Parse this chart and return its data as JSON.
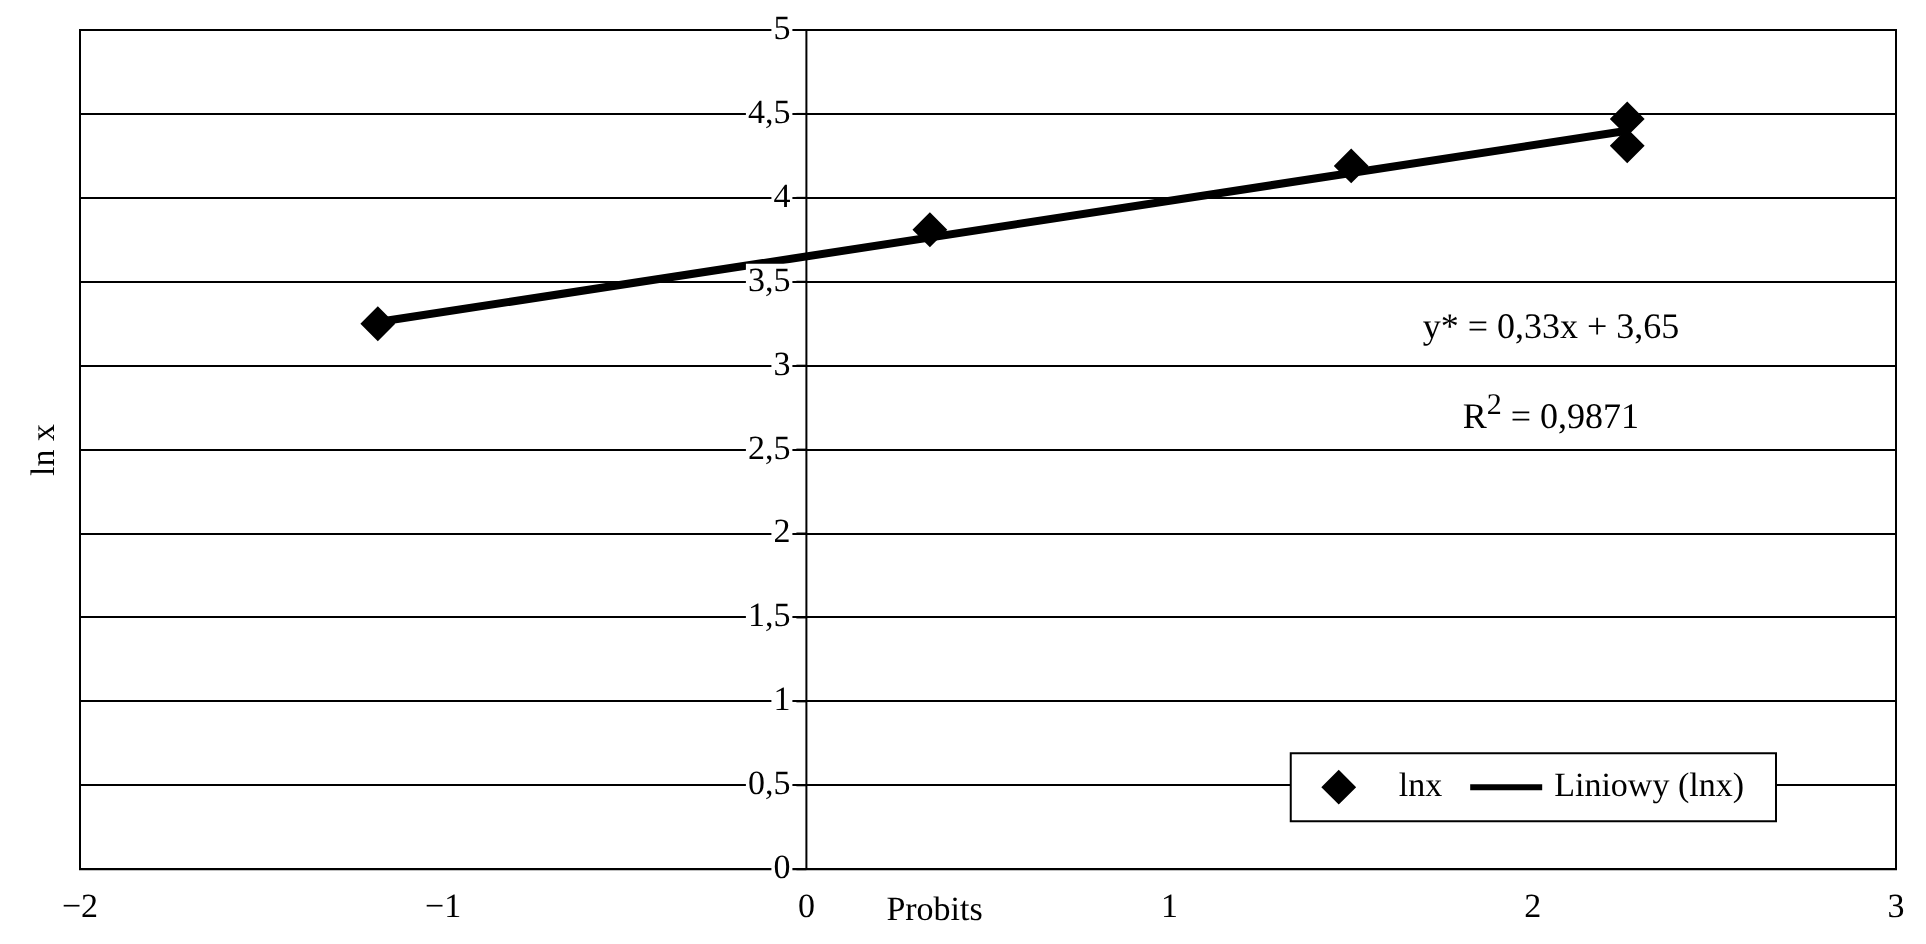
{
  "chart_data": {
    "type": "scatter",
    "xlabel": "Probits",
    "ylabel": "ln x",
    "series": [
      {
        "name": "lnx",
        "type": "scatter",
        "color": "#000000",
        "marker": "diamond",
        "x": [
          -1.18,
          0.34,
          1.5,
          2.26,
          2.26
        ],
        "values": [
          3.25,
          3.81,
          4.19,
          4.47,
          4.31
        ]
      },
      {
        "name": "Liniowy (lnx)",
        "type": "line",
        "color": "#000000",
        "marker": "none",
        "line_style": "solid",
        "x": [
          -1.18,
          2.26
        ],
        "values": [
          3.26,
          4.4
        ]
      }
    ],
    "xlim": [
      -2,
      3
    ],
    "xticks": [
      {
        "value": -2,
        "label": "−2"
      },
      {
        "value": -1,
        "label": "−1"
      },
      0,
      1,
      2,
      3
    ],
    "ylim": [
      0,
      5
    ],
    "yticks": [
      0,
      {
        "value": 0.5,
        "label": "0,5"
      },
      1,
      {
        "value": 1.5,
        "label": "1,5"
      },
      2,
      {
        "value": 2.5,
        "label": "2,5"
      },
      3,
      {
        "value": 3.5,
        "label": "3,5"
      },
      4,
      {
        "value": 4.5,
        "label": "4,5"
      },
      5
    ],
    "grid": "y",
    "legend": "bottom right",
    "annotations": [
      "y* = 0,33x + 3,65",
      "R$^{2}$ = 0,9871"
    ]
  }
}
